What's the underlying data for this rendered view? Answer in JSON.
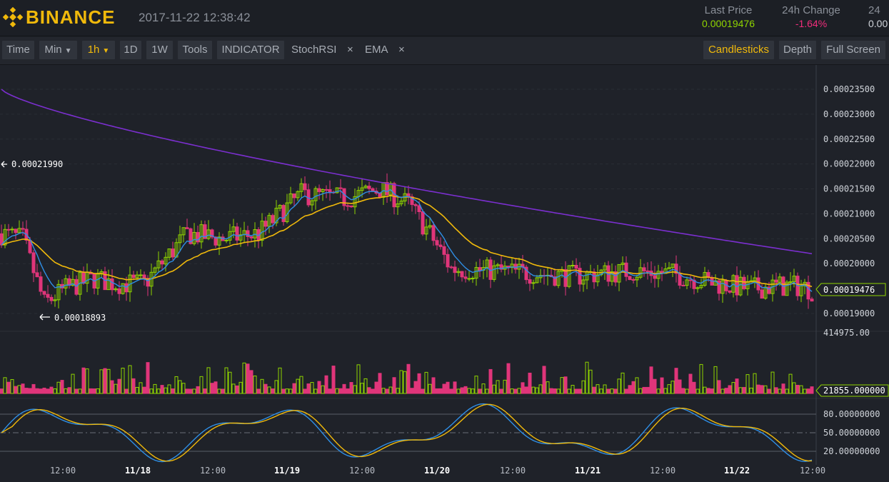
{
  "header": {
    "brand": "BINANCE",
    "timestamp": "2017-11-22 12:38:42",
    "stats": [
      {
        "label": "Last Price",
        "value": "0.00019476",
        "color": "#8fd400"
      },
      {
        "label": "24h Change",
        "value": "-1.64%",
        "color": "#f02d7b"
      },
      {
        "label": "24",
        "value": "0.00",
        "color": "#d0d4da"
      }
    ]
  },
  "toolbar": {
    "time": "Time",
    "min": "Min",
    "interval": "1h",
    "d1": "1D",
    "w1": "1W",
    "tools": "Tools",
    "indicator": "INDICATOR",
    "stochrsi": "StochRSI",
    "stochrsi_close": "×",
    "ema": "EMA",
    "ema_close": "×",
    "candlesticks": "Candlesticks",
    "depth": "Depth",
    "fullscreen": "Full Screen"
  },
  "colors": {
    "up": "#8fd400",
    "down": "#e0357a",
    "ema_fast": "#2f8fe6",
    "ema_mid": "#f0b90b",
    "ema_slow": "#7b2fcf",
    "stoch_k": "#2f8fe6",
    "stoch_d": "#f0b90b",
    "accent": "#f0b90b"
  },
  "chart_data": [
    {
      "type": "candlestick",
      "title": "",
      "y_ticks": [
        "0.00023500",
        "0.00023000",
        "0.00022500",
        "0.00022000",
        "0.00021500",
        "0.00021000",
        "0.00020500",
        "0.00020000",
        "0.00019000"
      ],
      "ylim": [
        0.000184,
        0.000239
      ],
      "high_marker": "0.00021990",
      "low_marker": "0.00018893",
      "last_price_tag": "0.00019476",
      "x_ticks": [
        "12:00",
        "11/18",
        "12:00",
        "11/19",
        "12:00",
        "11/20",
        "12:00",
        "11/21",
        "12:00",
        "11/22",
        "12:00"
      ],
      "series": [
        {
          "name": "EMA",
          "values": []
        },
        {
          "name": "EMA",
          "values": []
        },
        {
          "name": "EMA",
          "values": []
        }
      ]
    },
    {
      "type": "bar",
      "title": "",
      "max_label": "414975.00",
      "last_volume_tag": "21855.000000"
    },
    {
      "type": "line",
      "title": "",
      "y_ticks": [
        "80.00000000",
        "50.00000000",
        "20.00000000"
      ],
      "ylim": [
        0,
        100
      ]
    }
  ]
}
